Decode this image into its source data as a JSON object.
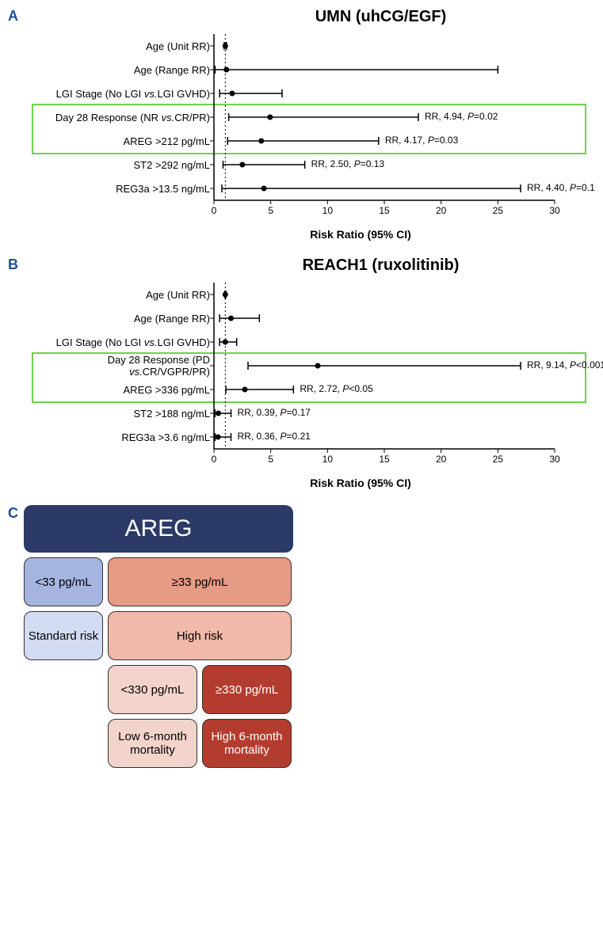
{
  "panelA": {
    "label": "A",
    "title": "UMN (uhCG/EGF)",
    "x_axis_label": "Risk Ratio (95% CI)",
    "xlim": [
      0,
      30
    ],
    "xticks": [
      0,
      5,
      10,
      15,
      20,
      25,
      30
    ],
    "ref_line": 1,
    "highlight_rows": [
      3,
      4
    ],
    "rows": [
      {
        "label": "Age (Unit RR)",
        "point": 1.0,
        "lo": 0.9,
        "hi": 1.1,
        "annot": ""
      },
      {
        "label": "Age (Range RR)",
        "point": 1.1,
        "lo": 0.1,
        "hi": 25.0,
        "annot": ""
      },
      {
        "label": "LGI Stage (No LGI vs.LGI GVHD)",
        "point": 1.6,
        "lo": 0.5,
        "hi": 6.0,
        "annot": ""
      },
      {
        "label": "Day 28 Response (NR vs.CR/PR)",
        "point": 4.94,
        "lo": 1.3,
        "hi": 18.0,
        "annot": "RR, 4.94, P=0.02"
      },
      {
        "label": "AREG >212 pg/mL",
        "point": 4.17,
        "lo": 1.2,
        "hi": 14.5,
        "annot": "RR, 4.17, P=0.03"
      },
      {
        "label": "ST2 >292 ng/mL",
        "point": 2.5,
        "lo": 0.8,
        "hi": 8.0,
        "annot": "RR, 2.50, P=0.13"
      },
      {
        "label": "REG3a >13.5 ng/mL",
        "point": 4.4,
        "lo": 0.7,
        "hi": 27.0,
        "annot": "RR, 4.40, P=0.1"
      }
    ]
  },
  "panelB": {
    "label": "B",
    "title": "REACH1 (ruxolitinib)",
    "x_axis_label": "Risk Ratio (95% CI)",
    "xlim": [
      0,
      30
    ],
    "xticks": [
      0,
      5,
      10,
      15,
      20,
      25,
      30
    ],
    "ref_line": 1,
    "highlight_rows": [
      3,
      4
    ],
    "rows": [
      {
        "label": "Age (Unit RR)",
        "point": 1.0,
        "lo": 0.95,
        "hi": 1.05,
        "annot": ""
      },
      {
        "label": "Age (Range RR)",
        "point": 1.5,
        "lo": 0.5,
        "hi": 4.0,
        "annot": ""
      },
      {
        "label": "LGI Stage (No LGI vs.LGI GVHD)",
        "point": 1.0,
        "lo": 0.5,
        "hi": 2.0,
        "annot": ""
      },
      {
        "label": "Day 28 Response (PD vs.CR/VGPR/PR)",
        "point": 9.14,
        "lo": 3.0,
        "hi": 27.0,
        "annot": "RR, 9.14, P<0.001"
      },
      {
        "label": "AREG >336 pg/mL",
        "point": 2.72,
        "lo": 1.05,
        "hi": 7.0,
        "annot": "RR, 2.72, P<0.05"
      },
      {
        "label": "ST2 >188 ng/mL",
        "point": 0.39,
        "lo": 0.1,
        "hi": 1.5,
        "annot": "RR, 0.39, P=0.17"
      },
      {
        "label": "REG3a >3.6 ng/mL",
        "point": 0.36,
        "lo": 0.1,
        "hi": 1.5,
        "annot": "RR, 0.36, P=0.21"
      }
    ]
  },
  "panelC": {
    "label": "C",
    "header": "AREG",
    "colors": {
      "header_bg": "#2b3a67",
      "lt33_bg": "#a6b5e0",
      "ge33_bg": "#e79a84",
      "std_bg": "#d3dcf2",
      "high_bg": "#f0b9aa",
      "lt330_bg": "#f3d4ca",
      "ge330_bg": "#b43c2e",
      "low6_bg": "#f3d4ca",
      "high6_bg": "#b43c2e"
    },
    "boxes": {
      "lt33": "<33 pg/mL",
      "ge33": "≥33 pg/mL",
      "std": "Standard risk",
      "high": "High risk",
      "lt330": "<330 pg/mL",
      "ge330": "≥330 pg/mL",
      "low6": "Low 6-month mortality",
      "high6": "High 6-month mortality"
    }
  },
  "style": {
    "marker_radius": 3.5,
    "line_color": "#000000",
    "ref_line_dash": "2,3",
    "highlight_color": "#6fd24a",
    "panel_label_color": "#1f4e9c"
  }
}
